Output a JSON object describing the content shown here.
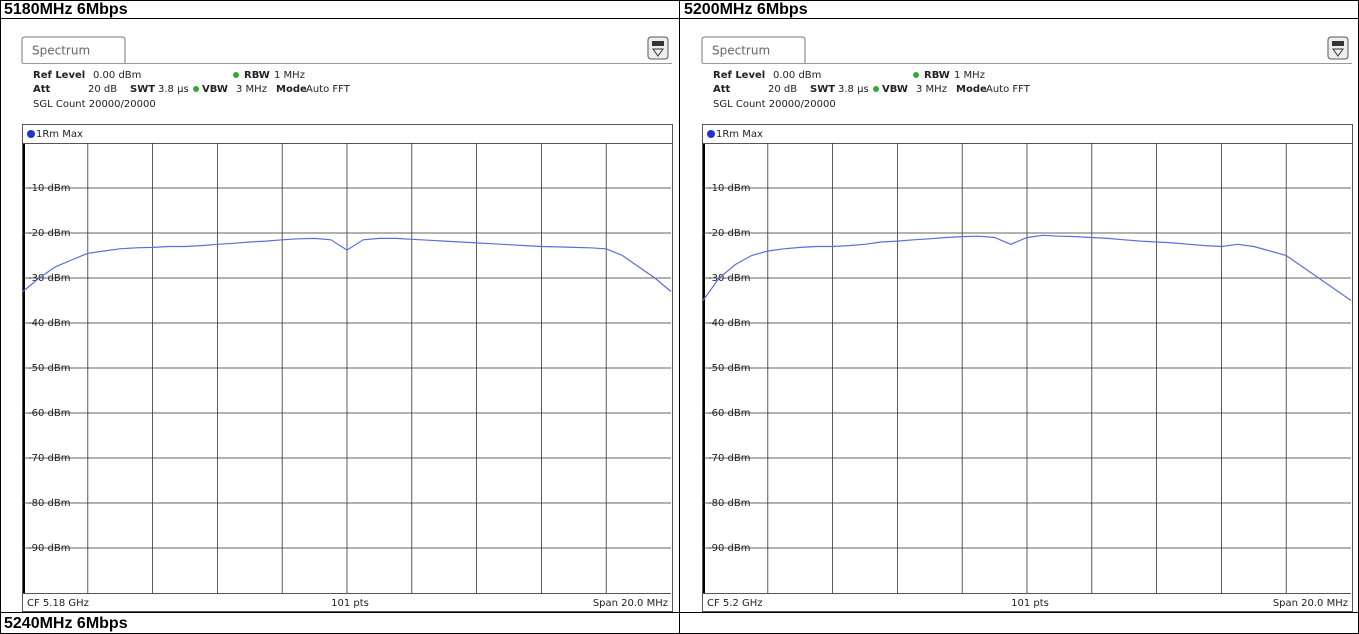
{
  "cells": [
    "5180MHz 6Mbps",
    "5200MHz 6Mbps",
    "5240MHz 6Mbps"
  ],
  "chart_data": [
    {
      "type": "line",
      "tab": "Spectrum",
      "ref_label": "Ref Level",
      "ref_value": "0.00 dBm",
      "att_label": "Att",
      "att_value": "20 dB",
      "swt_label": "SWT",
      "swt_value": "3.8 µs",
      "rbw_label": "RBW",
      "rbw_value": "1 MHz",
      "vbw_label": "VBW",
      "vbw_value": "3 MHz",
      "mode_label": "Mode",
      "mode_value": "Auto FFT",
      "count": "SGL Count 20000/20000",
      "legend": "1Rm Max",
      "footer_left": "CF 5.18 GHz",
      "footer_center": "101 pts",
      "footer_right": "Span 20.0 MHz",
      "color": "#5b6fd8",
      "grid": true,
      "ylim": [
        -100,
        0
      ],
      "yticks": [
        {
          "value": -10,
          "label": "-10 dBm"
        },
        {
          "value": -20,
          "label": "-20 dBm"
        },
        {
          "value": -30,
          "label": "-30 dBm"
        },
        {
          "value": -40,
          "label": "-40 dBm"
        },
        {
          "value": -50,
          "label": "-50 dBm"
        },
        {
          "value": -60,
          "label": "-60 dBm"
        },
        {
          "value": -70,
          "label": "-70 dBm"
        },
        {
          "value": -80,
          "label": "-80 dBm"
        },
        {
          "value": -90,
          "label": "-90 dBm"
        }
      ],
      "values": [
        -33,
        -30,
        -27.5,
        -26,
        -24.5,
        -24,
        -23.5,
        -23.3,
        -23.2,
        -23,
        -23,
        -22.8,
        -22.5,
        -22.3,
        -22,
        -21.8,
        -21.5,
        -21.3,
        -21.2,
        -21.5,
        -23.8,
        -21.5,
        -21.2,
        -21.2,
        -21.4,
        -21.6,
        -21.8,
        -22,
        -22.2,
        -22.4,
        -22.6,
        -22.8,
        -23,
        -23.1,
        -23.2,
        -23.3,
        -23.5,
        -25,
        -27.5,
        -30,
        -33
      ]
    },
    {
      "type": "line",
      "tab": "Spectrum",
      "ref_label": "Ref Level",
      "ref_value": "0.00 dBm",
      "att_label": "Att",
      "att_value": "20 dB",
      "swt_label": "SWT",
      "swt_value": "3.8 µs",
      "rbw_label": "RBW",
      "rbw_value": "1 MHz",
      "vbw_label": "VBW",
      "vbw_value": "3 MHz",
      "mode_label": "Mode",
      "mode_value": "Auto FFT",
      "count": "SGL Count 20000/20000",
      "legend": "1Rm Max",
      "footer_left": "CF 5.2 GHz",
      "footer_center": "101 pts",
      "footer_right": "Span 20.0 MHz",
      "color": "#5b6fd8",
      "grid": true,
      "ylim": [
        -100,
        0
      ],
      "yticks": [
        {
          "value": -10,
          "label": "-10 dBm"
        },
        {
          "value": -20,
          "label": "-20 dBm"
        },
        {
          "value": -30,
          "label": "-30 dBm"
        },
        {
          "value": -40,
          "label": "-40 dBm"
        },
        {
          "value": -50,
          "label": "-50 dBm"
        },
        {
          "value": -60,
          "label": "-60 dBm"
        },
        {
          "value": -70,
          "label": "-70 dBm"
        },
        {
          "value": -80,
          "label": "-80 dBm"
        },
        {
          "value": -90,
          "label": "-90 dBm"
        }
      ],
      "values": [
        -35,
        -30,
        -27,
        -25,
        -24,
        -23.5,
        -23.2,
        -23,
        -23,
        -22.8,
        -22.5,
        -22,
        -21.8,
        -21.5,
        -21.3,
        -21,
        -20.8,
        -20.7,
        -21,
        -22.5,
        -21,
        -20.5,
        -20.7,
        -20.8,
        -21,
        -21.2,
        -21.5,
        -21.8,
        -22,
        -22.2,
        -22.5,
        -22.8,
        -23,
        -22.5,
        -23,
        -24,
        -25,
        -27.5,
        -30,
        -32.5,
        -35
      ]
    }
  ]
}
